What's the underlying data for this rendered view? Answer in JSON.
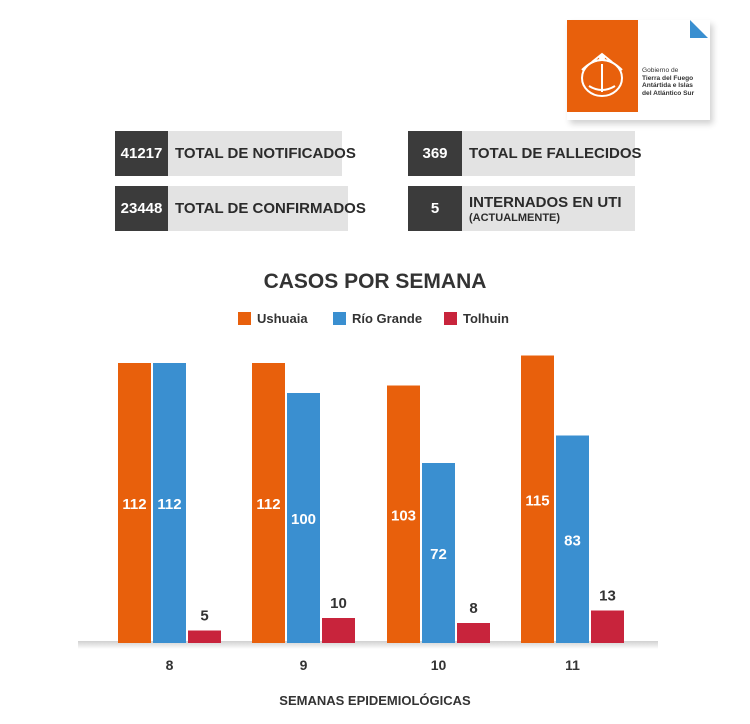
{
  "header": {
    "logo_lines": [
      "Gobierno de",
      "Tierra del Fuego",
      "Antártida e Islas",
      "del Atlántico Sur"
    ],
    "brand_color": "#e8600c"
  },
  "stats": [
    {
      "value": "41217",
      "label": "TOTAL DE NOTIFICADOS",
      "sublabel": ""
    },
    {
      "value": "23448",
      "label": "TOTAL DE CONFIRMADOS",
      "sublabel": ""
    },
    {
      "value": "369",
      "label": "TOTAL DE FALLECIDOS",
      "sublabel": ""
    },
    {
      "value": "5",
      "label": "INTERNADOS EN UTI",
      "sublabel": "(ACTUALMENTE)"
    }
  ],
  "chart_data": {
    "type": "bar",
    "title": "CASOS POR SEMANA",
    "xlabel": "SEMANAS EPIDEMIOLÓGICAS",
    "ylabel": "",
    "categories": [
      "8",
      "9",
      "10",
      "11"
    ],
    "series": [
      {
        "name": "Ushuaia",
        "color": "#e8600c",
        "values": [
          112,
          112,
          103,
          115
        ]
      },
      {
        "name": "Río Grande",
        "color": "#3a8fd0",
        "values": [
          112,
          100,
          72,
          83
        ]
      },
      {
        "name": "Tolhuin",
        "color": "#c8243c",
        "values": [
          5,
          10,
          8,
          13
        ]
      }
    ],
    "legend": "top-center",
    "grid": false
  }
}
